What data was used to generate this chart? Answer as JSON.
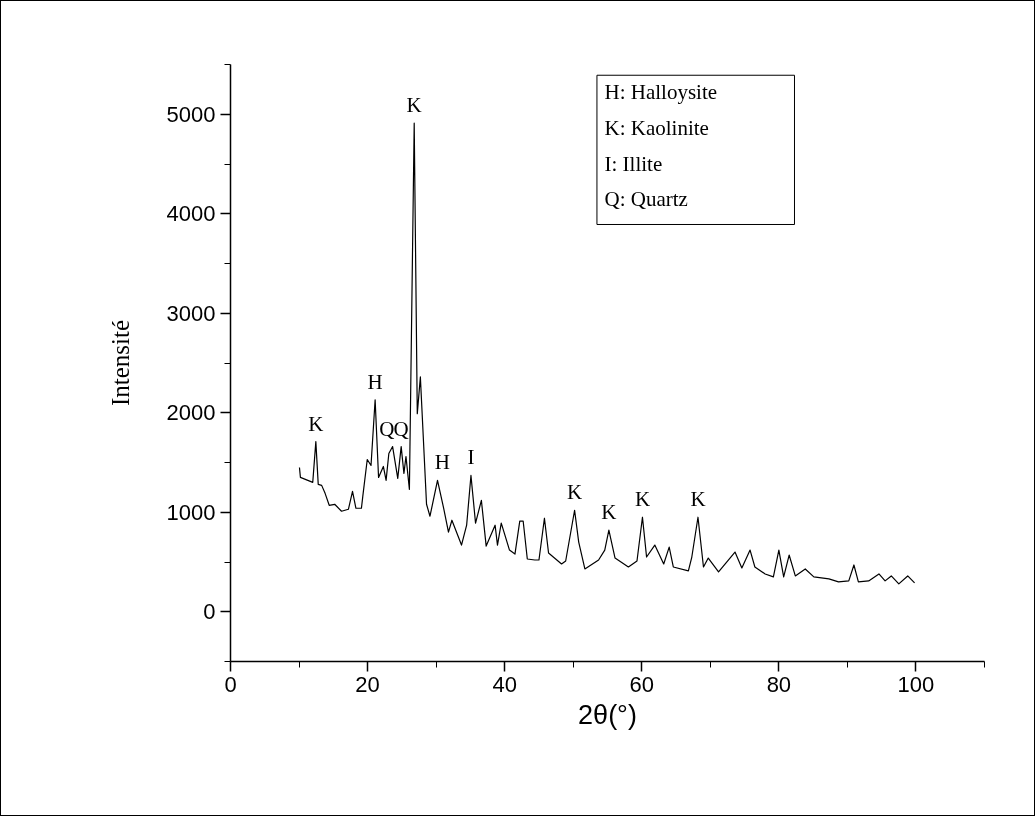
{
  "chart_data": {
    "type": "line",
    "xlabel": "2θ(°)",
    "ylabel": "Intensité",
    "xlim": [
      0,
      110
    ],
    "ylim": [
      -500,
      5500
    ],
    "xticks": [
      0,
      20,
      40,
      60,
      80,
      100
    ],
    "yticks": [
      0,
      1000,
      2000,
      3000,
      4000,
      5000
    ],
    "grid": false,
    "marker": "none",
    "line_style": "solid",
    "series": [
      {
        "color": "#000000",
        "x": [
          10.06,
          10.2,
          12.0,
          12.45,
          12.8,
          13.3,
          13.8,
          14.4,
          15.2,
          16.2,
          17.2,
          17.8,
          18.3,
          19.1,
          19.3,
          19.95,
          20.5,
          21.1,
          21.6,
          22.3,
          22.7,
          23.1,
          23.65,
          24.4,
          24.9,
          25.3,
          25.6,
          26.1,
          26.8,
          27.25,
          27.7,
          28.6,
          29.1,
          30.2,
          31.1,
          31.8,
          32.3,
          33.7,
          34.45,
          35.08,
          35.75,
          36.6,
          37.3,
          38.6,
          38.95,
          39.5,
          40.7,
          41.5,
          42.2,
          42.7,
          43.3,
          44.4,
          45.0,
          45.8,
          46.4,
          48.3,
          48.9,
          50.2,
          50.8,
          51.7,
          53.7,
          54.6,
          55.2,
          56.1,
          58.05,
          59.3,
          60.1,
          60.7,
          61.9,
          63.2,
          64.0,
          64.6,
          66.8,
          67.3,
          68.2,
          69.0,
          69.7,
          71.2,
          73.6,
          74.6,
          75.8,
          76.5,
          78.0,
          79.2,
          80.0,
          80.7,
          81.5,
          82.4,
          83.85,
          85.1,
          87.3,
          88.7,
          90.2,
          90.95,
          91.6,
          93.1,
          94.6,
          95.5,
          96.4,
          97.5,
          98.8,
          99.8
        ],
        "values": [
          1450,
          1350,
          1300,
          1710,
          1280,
          1270,
          1190,
          1070,
          1080,
          1010,
          1030,
          1210,
          1040,
          1040,
          1160,
          1530,
          1470,
          2130,
          1350,
          1460,
          1320,
          1590,
          1660,
          1340,
          1660,
          1390,
          1560,
          1230,
          4910,
          1990,
          2360,
          1080,
          960,
          1320,
          1040,
          800,
          920,
          670,
          870,
          1370,
          890,
          1120,
          660,
          870,
          670,
          890,
          620,
          580,
          910,
          910,
          530,
          520,
          520,
          940,
          590,
          480,
          510,
          1020,
          700,
          430,
          520,
          620,
          820,
          540,
          450,
          510,
          950,
          550,
          670,
          480,
          650,
          450,
          410,
          550,
          950,
          450,
          540,
          400,
          600,
          440,
          620,
          450,
          380,
          350,
          620,
          350,
          570,
          360,
          430,
          350,
          330,
          300,
          310,
          470,
          300,
          310,
          380,
          310,
          360,
          280,
          360,
          290
        ]
      }
    ],
    "annotations": [
      {
        "text": "K",
        "x": 12.45,
        "y": 1710
      },
      {
        "text": "H",
        "x": 21.1,
        "y": 2130
      },
      {
        "text": "Q",
        "x": 22.8,
        "y": 1660
      },
      {
        "text": "Q",
        "x": 24.9,
        "y": 1660
      },
      {
        "text": "K",
        "x": 26.8,
        "y": 4910
      },
      {
        "text": "H",
        "x": 30.9,
        "y": 1320
      },
      {
        "text": "I",
        "x": 35.08,
        "y": 1370
      },
      {
        "text": "K",
        "x": 50.2,
        "y": 1020
      },
      {
        "text": "K",
        "x": 55.2,
        "y": 820
      },
      {
        "text": "K",
        "x": 60.1,
        "y": 950
      },
      {
        "text": "K",
        "x": 68.2,
        "y": 950
      },
      "H: Halloysite",
      "K: Kaolinite",
      "I: Illite",
      "Q: Quartz"
    ]
  }
}
